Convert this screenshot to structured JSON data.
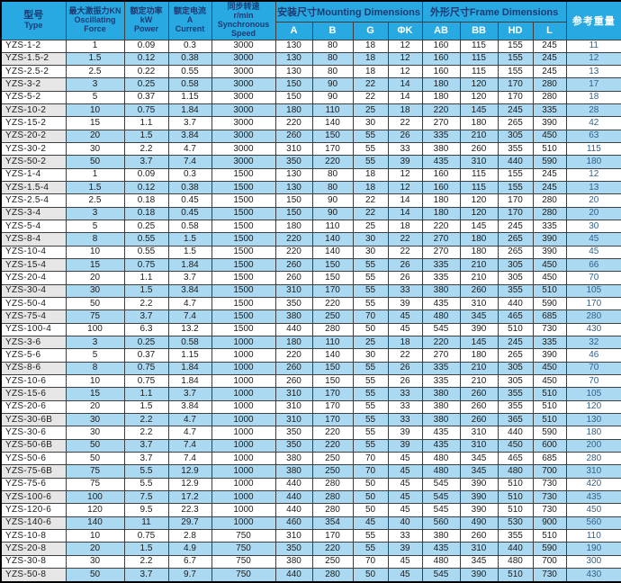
{
  "colors": {
    "header_bg": "#29a9e1",
    "row_alt_bg": "#abd9f2",
    "type_col_alt_bg": "#e6e6e6",
    "header_text": "#1d3a73",
    "subheader_text": "#ffffff",
    "data_text": "#1c1c1c",
    "weight_text": "#33608c",
    "grid_line": "#3f3f3f",
    "outer_border": "#000000"
  },
  "table": {
    "column_headers": {
      "type": [
        "型号",
        "Type"
      ],
      "force": [
        "最大激振力KN",
        "Oscillating",
        "Force"
      ],
      "power": [
        "额定功率",
        "kW",
        "Power"
      ],
      "current": [
        "额定电流",
        "A",
        "Current"
      ],
      "speed": [
        "同步转速",
        "r/min",
        "Synchronous",
        "Speed"
      ],
      "mounting_group": "安装尺寸Mounting Dimensions",
      "mounting_cols": [
        "A",
        "B",
        "G",
        "ΦK"
      ],
      "frame_group": "外形尺寸Frame Dimensions",
      "frame_cols": [
        "AB",
        "BB",
        "HD",
        "L"
      ],
      "weight": "参考重量"
    },
    "rows": [
      [
        "YZS-1-2",
        "1",
        "0.09",
        "0.3",
        "3000",
        "130",
        "80",
        "18",
        "12",
        "160",
        "115",
        "155",
        "245",
        "11"
      ],
      [
        "YZS-1.5-2",
        "1.5",
        "0.12",
        "0.38",
        "3000",
        "130",
        "80",
        "18",
        "12",
        "160",
        "115",
        "155",
        "245",
        "12"
      ],
      [
        "YZS-2.5-2",
        "2.5",
        "0.22",
        "0.55",
        "3000",
        "130",
        "80",
        "18",
        "12",
        "160",
        "115",
        "155",
        "245",
        "13"
      ],
      [
        "YZS-3-2",
        "3",
        "0.25",
        "0.58",
        "3000",
        "150",
        "90",
        "22",
        "14",
        "180",
        "120",
        "170",
        "280",
        "17"
      ],
      [
        "YZS-5-2",
        "5",
        "0.37",
        "1.15",
        "3000",
        "150",
        "90",
        "22",
        "14",
        "180",
        "120",
        "170",
        "280",
        "18"
      ],
      [
        "YZS-10-2",
        "10",
        "0.75",
        "1.84",
        "3000",
        "180",
        "110",
        "25",
        "18",
        "220",
        "145",
        "245",
        "335",
        "28"
      ],
      [
        "YZS-15-2",
        "15",
        "1.1",
        "3.7",
        "3000",
        "220",
        "140",
        "30",
        "22",
        "270",
        "180",
        "265",
        "390",
        "42"
      ],
      [
        "YZS-20-2",
        "20",
        "1.5",
        "3.84",
        "3000",
        "260",
        "150",
        "55",
        "26",
        "335",
        "210",
        "305",
        "450",
        "63"
      ],
      [
        "YZS-30-2",
        "30",
        "2.2",
        "4.7",
        "3000",
        "310",
        "170",
        "55",
        "33",
        "380",
        "260",
        "355",
        "510",
        "115"
      ],
      [
        "YZS-50-2",
        "50",
        "3.7",
        "7.4",
        "3000",
        "350",
        "220",
        "55",
        "39",
        "435",
        "310",
        "440",
        "590",
        "180"
      ],
      [
        "YZS-1-4",
        "1",
        "0.09",
        "0.3",
        "1500",
        "130",
        "80",
        "18",
        "12",
        "160",
        "115",
        "155",
        "245",
        "12"
      ],
      [
        "YZS-1.5-4",
        "1.5",
        "0.12",
        "0.38",
        "1500",
        "130",
        "80",
        "18",
        "12",
        "160",
        "115",
        "155",
        "245",
        "13"
      ],
      [
        "YZS-2.5-4",
        "2.5",
        "0.18",
        "0.45",
        "1500",
        "150",
        "90",
        "22",
        "14",
        "180",
        "120",
        "170",
        "280",
        "20"
      ],
      [
        "YZS-3-4",
        "3",
        "0.18",
        "0.45",
        "1500",
        "150",
        "90",
        "22",
        "14",
        "180",
        "120",
        "170",
        "280",
        "20"
      ],
      [
        "YZS-5-4",
        "5",
        "0.25",
        "0.58",
        "1500",
        "180",
        "110",
        "25",
        "18",
        "220",
        "145",
        "245",
        "335",
        "30"
      ],
      [
        "YZS-8-4",
        "8",
        "0.55",
        "1.5",
        "1500",
        "220",
        "140",
        "30",
        "22",
        "270",
        "180",
        "265",
        "390",
        "45"
      ],
      [
        "YZS-10-4",
        "10",
        "0.55",
        "1.5",
        "1500",
        "220",
        "140",
        "30",
        "22",
        "270",
        "180",
        "265",
        "390",
        "45"
      ],
      [
        "YZS-15-4",
        "15",
        "0.75",
        "1.84",
        "1500",
        "260",
        "150",
        "55",
        "26",
        "335",
        "210",
        "305",
        "450",
        "66"
      ],
      [
        "YZS-20-4",
        "20",
        "1.1",
        "3.7",
        "1500",
        "260",
        "150",
        "55",
        "26",
        "335",
        "210",
        "305",
        "450",
        "70"
      ],
      [
        "YZS-30-4",
        "30",
        "1.5",
        "3.84",
        "1500",
        "310",
        "170",
        "55",
        "33",
        "380",
        "260",
        "355",
        "510",
        "105"
      ],
      [
        "YZS-50-4",
        "50",
        "2.2",
        "4.7",
        "1500",
        "350",
        "220",
        "55",
        "39",
        "435",
        "310",
        "440",
        "590",
        "170"
      ],
      [
        "YZS-75-4",
        "75",
        "3.7",
        "7.4",
        "1500",
        "380",
        "250",
        "70",
        "45",
        "480",
        "345",
        "465",
        "685",
        "280"
      ],
      [
        "YZS-100-4",
        "100",
        "6.3",
        "13.2",
        "1500",
        "440",
        "280",
        "50",
        "45",
        "545",
        "390",
        "510",
        "730",
        "430"
      ],
      [
        "YZS-3-6",
        "3",
        "0.25",
        "0.58",
        "1000",
        "180",
        "110",
        "25",
        "18",
        "220",
        "145",
        "245",
        "335",
        "32"
      ],
      [
        "YZS-5-6",
        "5",
        "0.37",
        "1.15",
        "1000",
        "220",
        "140",
        "30",
        "22",
        "270",
        "180",
        "265",
        "390",
        "46"
      ],
      [
        "YZS-8-6",
        "8",
        "0.75",
        "1.84",
        "1000",
        "260",
        "150",
        "55",
        "26",
        "335",
        "210",
        "305",
        "450",
        "70"
      ],
      [
        "YZS-10-6",
        "10",
        "0.75",
        "1.84",
        "1000",
        "260",
        "150",
        "55",
        "26",
        "335",
        "210",
        "305",
        "450",
        "70"
      ],
      [
        "YZS-15-6",
        "15",
        "1.1",
        "3.7",
        "1000",
        "310",
        "170",
        "55",
        "33",
        "380",
        "260",
        "355",
        "510",
        "105"
      ],
      [
        "YZS-20-6",
        "20",
        "1.5",
        "3.84",
        "1000",
        "310",
        "170",
        "55",
        "33",
        "380",
        "260",
        "355",
        "510",
        "120"
      ],
      [
        "YZS-30-6B",
        "30",
        "2.2",
        "4.7",
        "1000",
        "310",
        "170",
        "55",
        "33",
        "380",
        "260",
        "365",
        "510",
        "130"
      ],
      [
        "YZS-30-6",
        "30",
        "2.2",
        "4.7",
        "1000",
        "350",
        "220",
        "55",
        "39",
        "435",
        "310",
        "440",
        "590",
        "180"
      ],
      [
        "YZS-50-6B",
        "50",
        "3.7",
        "7.4",
        "1000",
        "350",
        "220",
        "55",
        "39",
        "435",
        "310",
        "450",
        "600",
        "200"
      ],
      [
        "YZS-50-6",
        "50",
        "3.7",
        "7.4",
        "1000",
        "380",
        "250",
        "70",
        "45",
        "480",
        "345",
        "465",
        "685",
        "280"
      ],
      [
        "YZS-75-6B",
        "75",
        "5.5",
        "12.9",
        "1000",
        "380",
        "250",
        "70",
        "45",
        "480",
        "345",
        "480",
        "700",
        "310"
      ],
      [
        "YZS-75-6",
        "75",
        "5.5",
        "12.9",
        "1000",
        "440",
        "280",
        "50",
        "45",
        "545",
        "390",
        "510",
        "730",
        "420"
      ],
      [
        "YZS-100-6",
        "100",
        "7.5",
        "17.2",
        "1000",
        "440",
        "280",
        "50",
        "45",
        "545",
        "390",
        "510",
        "730",
        "435"
      ],
      [
        "YZS-120-6",
        "120",
        "9.5",
        "22.3",
        "1000",
        "440",
        "280",
        "50",
        "45",
        "545",
        "390",
        "510",
        "730",
        "450"
      ],
      [
        "YZS-140-6",
        "140",
        "11",
        "29.7",
        "1000",
        "460",
        "354",
        "45",
        "40",
        "560",
        "490",
        "530",
        "900",
        "560"
      ],
      [
        "YZS-10-8",
        "10",
        "0.75",
        "2.8",
        "750",
        "310",
        "170",
        "55",
        "33",
        "380",
        "260",
        "355",
        "510",
        "110"
      ],
      [
        "YZS-20-8",
        "20",
        "1.5",
        "4.9",
        "750",
        "350",
        "220",
        "55",
        "39",
        "435",
        "310",
        "440",
        "590",
        "190"
      ],
      [
        "YZS-30-8",
        "30",
        "2.2",
        "6.7",
        "750",
        "380",
        "250",
        "70",
        "45",
        "480",
        "345",
        "480",
        "700",
        "300"
      ],
      [
        "YZS-50-8",
        "50",
        "3.7",
        "9.7",
        "750",
        "440",
        "280",
        "50",
        "45",
        "545",
        "390",
        "510",
        "730",
        "430"
      ]
    ]
  }
}
